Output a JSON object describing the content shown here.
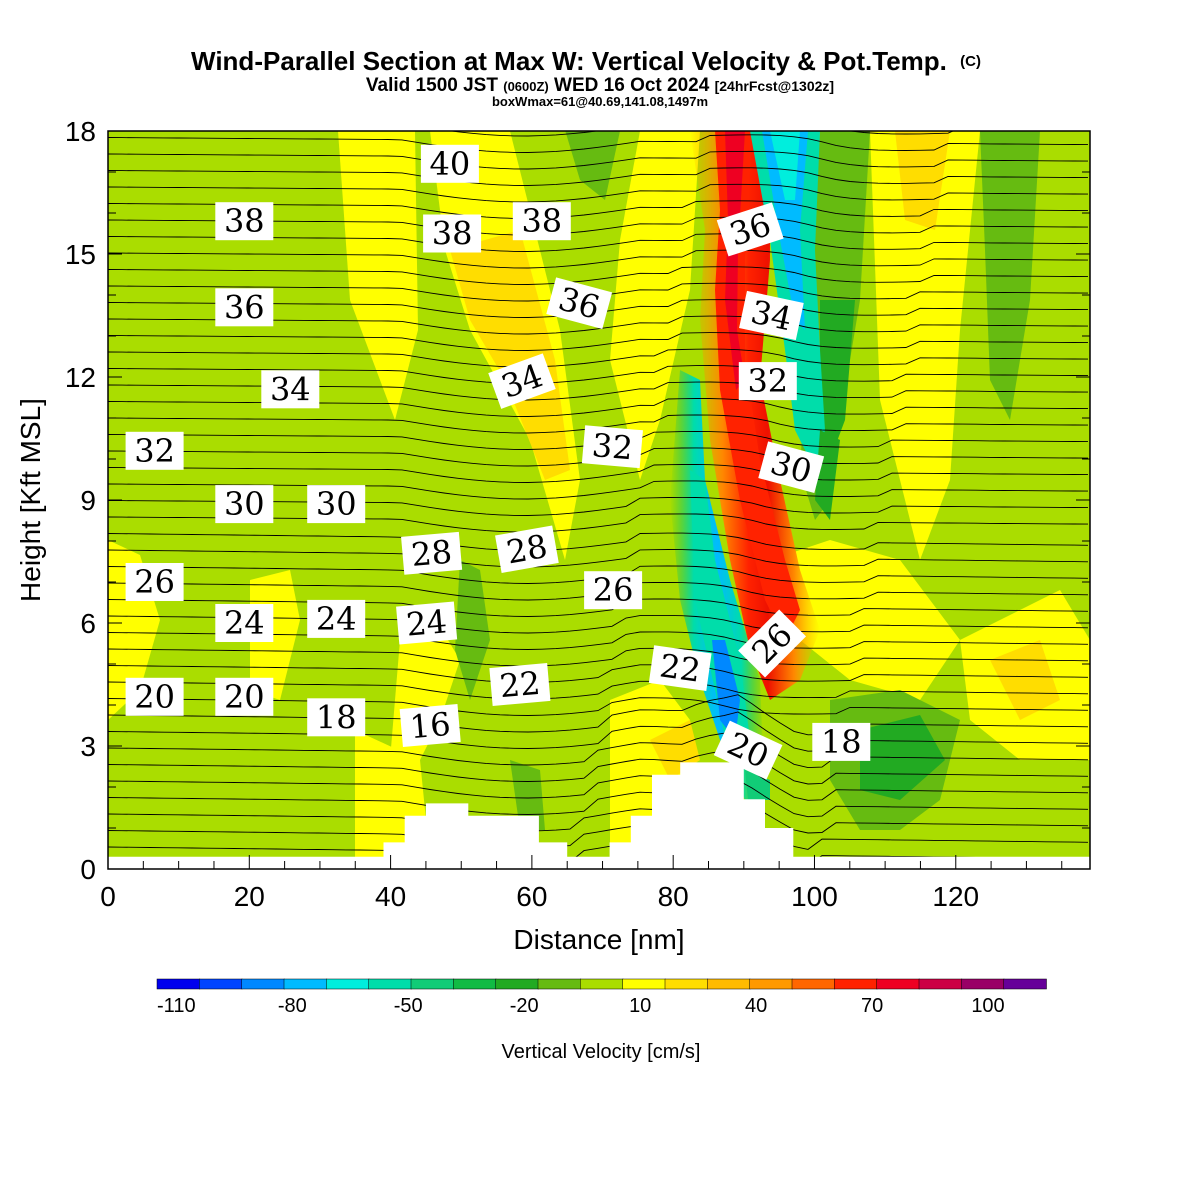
{
  "chart_data": {
    "type": "contour",
    "title": {
      "main": "Wind-Parallel Section at Max W: Vertical Velocity & Pot.Temp.",
      "main_mark": "(C)",
      "valid_a": "Valid 1500 JST",
      "valid_zone": "(0600Z)",
      "valid_b": "WED 16 Oct 2024",
      "valid_fcst": "[24hrFcst@1302z]",
      "box": "boxWmax=61@40.69,141.08,1497m"
    },
    "xlabel": "Distance [nm]",
    "ylabel": "Height [Kft MSL]",
    "xlim": [
      0,
      139
    ],
    "ylim": [
      0,
      18
    ],
    "xticks": [
      "0",
      "20",
      "40",
      "60",
      "80",
      "100",
      "120"
    ],
    "yticks": [
      "0",
      "3",
      "6",
      "9",
      "12",
      "15",
      "18"
    ],
    "colorbar": {
      "label": "Vertical Velocity [cm/s]",
      "ticks": [
        "-110",
        "-80",
        "-50",
        "-20",
        "10",
        "40",
        "70",
        "100"
      ],
      "colors": [
        "#0000ee",
        "#0044ff",
        "#0088ff",
        "#00bbff",
        "#00eedd",
        "#00ddaa",
        "#11cc77",
        "#11bb44",
        "#22aa22",
        "#66bb11",
        "#aadd00",
        "#ffff00",
        "#ffdd00",
        "#ffbb00",
        "#ff9900",
        "#ff6600",
        "#ff2200",
        "#ee0022",
        "#cc0044",
        "#990066",
        "#660099"
      ]
    },
    "theta_labels": [
      {
        "text": "40",
        "x": 48.4,
        "y": 17.2,
        "rot": 0
      },
      {
        "text": "38",
        "x": 19.3,
        "y": 15.8,
        "rot": 0
      },
      {
        "text": "38",
        "x": 48.7,
        "y": 15.5,
        "rot": 0
      },
      {
        "text": "38",
        "x": 61.4,
        "y": 15.8,
        "rot": 0
      },
      {
        "text": "36",
        "x": 19.3,
        "y": 13.7,
        "rot": 0
      },
      {
        "text": "36",
        "x": 66.7,
        "y": 13.8,
        "rot": 15
      },
      {
        "text": "36",
        "x": 90.9,
        "y": 15.6,
        "rot": -18
      },
      {
        "text": "34",
        "x": 25.8,
        "y": 11.7,
        "rot": 0
      },
      {
        "text": "34",
        "x": 58.6,
        "y": 11.9,
        "rot": -20
      },
      {
        "text": "34",
        "x": 93.9,
        "y": 13.5,
        "rot": 12
      },
      {
        "text": "32",
        "x": 6.6,
        "y": 10.2,
        "rot": 0
      },
      {
        "text": "32",
        "x": 71.4,
        "y": 10.3,
        "rot": 5
      },
      {
        "text": "32",
        "x": 93.4,
        "y": 11.9,
        "rot": 0
      },
      {
        "text": "30",
        "x": 19.3,
        "y": 8.9,
        "rot": 0
      },
      {
        "text": "30",
        "x": 32.3,
        "y": 8.9,
        "rot": 0
      },
      {
        "text": "30",
        "x": 96.7,
        "y": 9.8,
        "rot": 15
      },
      {
        "text": "28",
        "x": 45.8,
        "y": 7.7,
        "rot": -5
      },
      {
        "text": "28",
        "x": 59.3,
        "y": 7.8,
        "rot": -10
      },
      {
        "text": "26",
        "x": 6.6,
        "y": 7.0,
        "rot": 0
      },
      {
        "text": "26",
        "x": 71.5,
        "y": 6.8,
        "rot": 0
      },
      {
        "text": "26",
        "x": 94.0,
        "y": 5.5,
        "rot": -45
      },
      {
        "text": "24",
        "x": 19.3,
        "y": 6.0,
        "rot": 0
      },
      {
        "text": "24",
        "x": 32.3,
        "y": 6.1,
        "rot": 0
      },
      {
        "text": "24",
        "x": 45.1,
        "y": 6.0,
        "rot": -5
      },
      {
        "text": "22",
        "x": 58.3,
        "y": 4.5,
        "rot": -5
      },
      {
        "text": "22",
        "x": 81.0,
        "y": 4.9,
        "rot": 8
      },
      {
        "text": "20",
        "x": 6.6,
        "y": 4.2,
        "rot": 0
      },
      {
        "text": "20",
        "x": 19.3,
        "y": 4.2,
        "rot": 0
      },
      {
        "text": "20",
        "x": 90.6,
        "y": 2.9,
        "rot": 25
      },
      {
        "text": "18",
        "x": 32.3,
        "y": 3.7,
        "rot": 0
      },
      {
        "text": "18",
        "x": 103.8,
        "y": 3.1,
        "rot": 0
      },
      {
        "text": "16",
        "x": 45.6,
        "y": 3.5,
        "rot": -5
      }
    ],
    "terrain_kft": [
      [
        0,
        0.3
      ],
      [
        39,
        0.3
      ],
      [
        39,
        0.65
      ],
      [
        42,
        0.65
      ],
      [
        42,
        1.3
      ],
      [
        45,
        1.3
      ],
      [
        45,
        1.6
      ],
      [
        51,
        1.6
      ],
      [
        51,
        1.3
      ],
      [
        61,
        1.3
      ],
      [
        61,
        0.65
      ],
      [
        65,
        0.65
      ],
      [
        65,
        0.3
      ],
      [
        71,
        0.3
      ],
      [
        71,
        0.65
      ],
      [
        74,
        0.65
      ],
      [
        74,
        1.3
      ],
      [
        77,
        1.3
      ],
      [
        77,
        2.3
      ],
      [
        81,
        2.3
      ],
      [
        81,
        2.6
      ],
      [
        90,
        2.6
      ],
      [
        90,
        1.7
      ],
      [
        93,
        1.7
      ],
      [
        93,
        1.0
      ],
      [
        97,
        1.0
      ],
      [
        97,
        0.3
      ],
      [
        139,
        0.3
      ]
    ]
  }
}
